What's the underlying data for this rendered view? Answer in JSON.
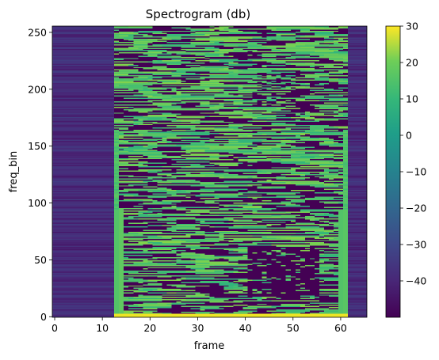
{
  "chart_data": {
    "type": "heatmap",
    "title": "Spectrogram (db)",
    "xlabel": "frame",
    "ylabel": "freq_bin",
    "x_range": [
      -0.5,
      65.5
    ],
    "y_range": [
      -0.5,
      255.5
    ],
    "x_ticks": [
      0,
      10,
      20,
      30,
      40,
      50,
      60
    ],
    "y_ticks": [
      0,
      50,
      100,
      150,
      200,
      250
    ],
    "n_frames": 66,
    "n_bins": 256,
    "colormap": "viridis",
    "colorbar": {
      "min": -50,
      "max": 30,
      "ticks": [
        30,
        20,
        10,
        0,
        -10,
        -20,
        -30,
        -40
      ],
      "tick_labels": [
        "30",
        "20",
        "10",
        "0",
        "−10",
        "−20",
        "−30",
        "−40"
      ]
    },
    "regions": [
      {
        "frames": [
          0,
          12
        ],
        "description": "low-energy horizontal striations around -45 to -35 dB"
      },
      {
        "frames": [
          13,
          61
        ],
        "description": "dense speech-like energy bands, -50 to 15 dB"
      },
      {
        "frames": [
          62,
          65
        ],
        "description": "low-energy horizontal striations around -45 to -35 dB"
      }
    ],
    "bright_bottom_row": {
      "bins": [
        0,
        2
      ],
      "value_db": 28
    },
    "grid": false,
    "legend": "none"
  }
}
